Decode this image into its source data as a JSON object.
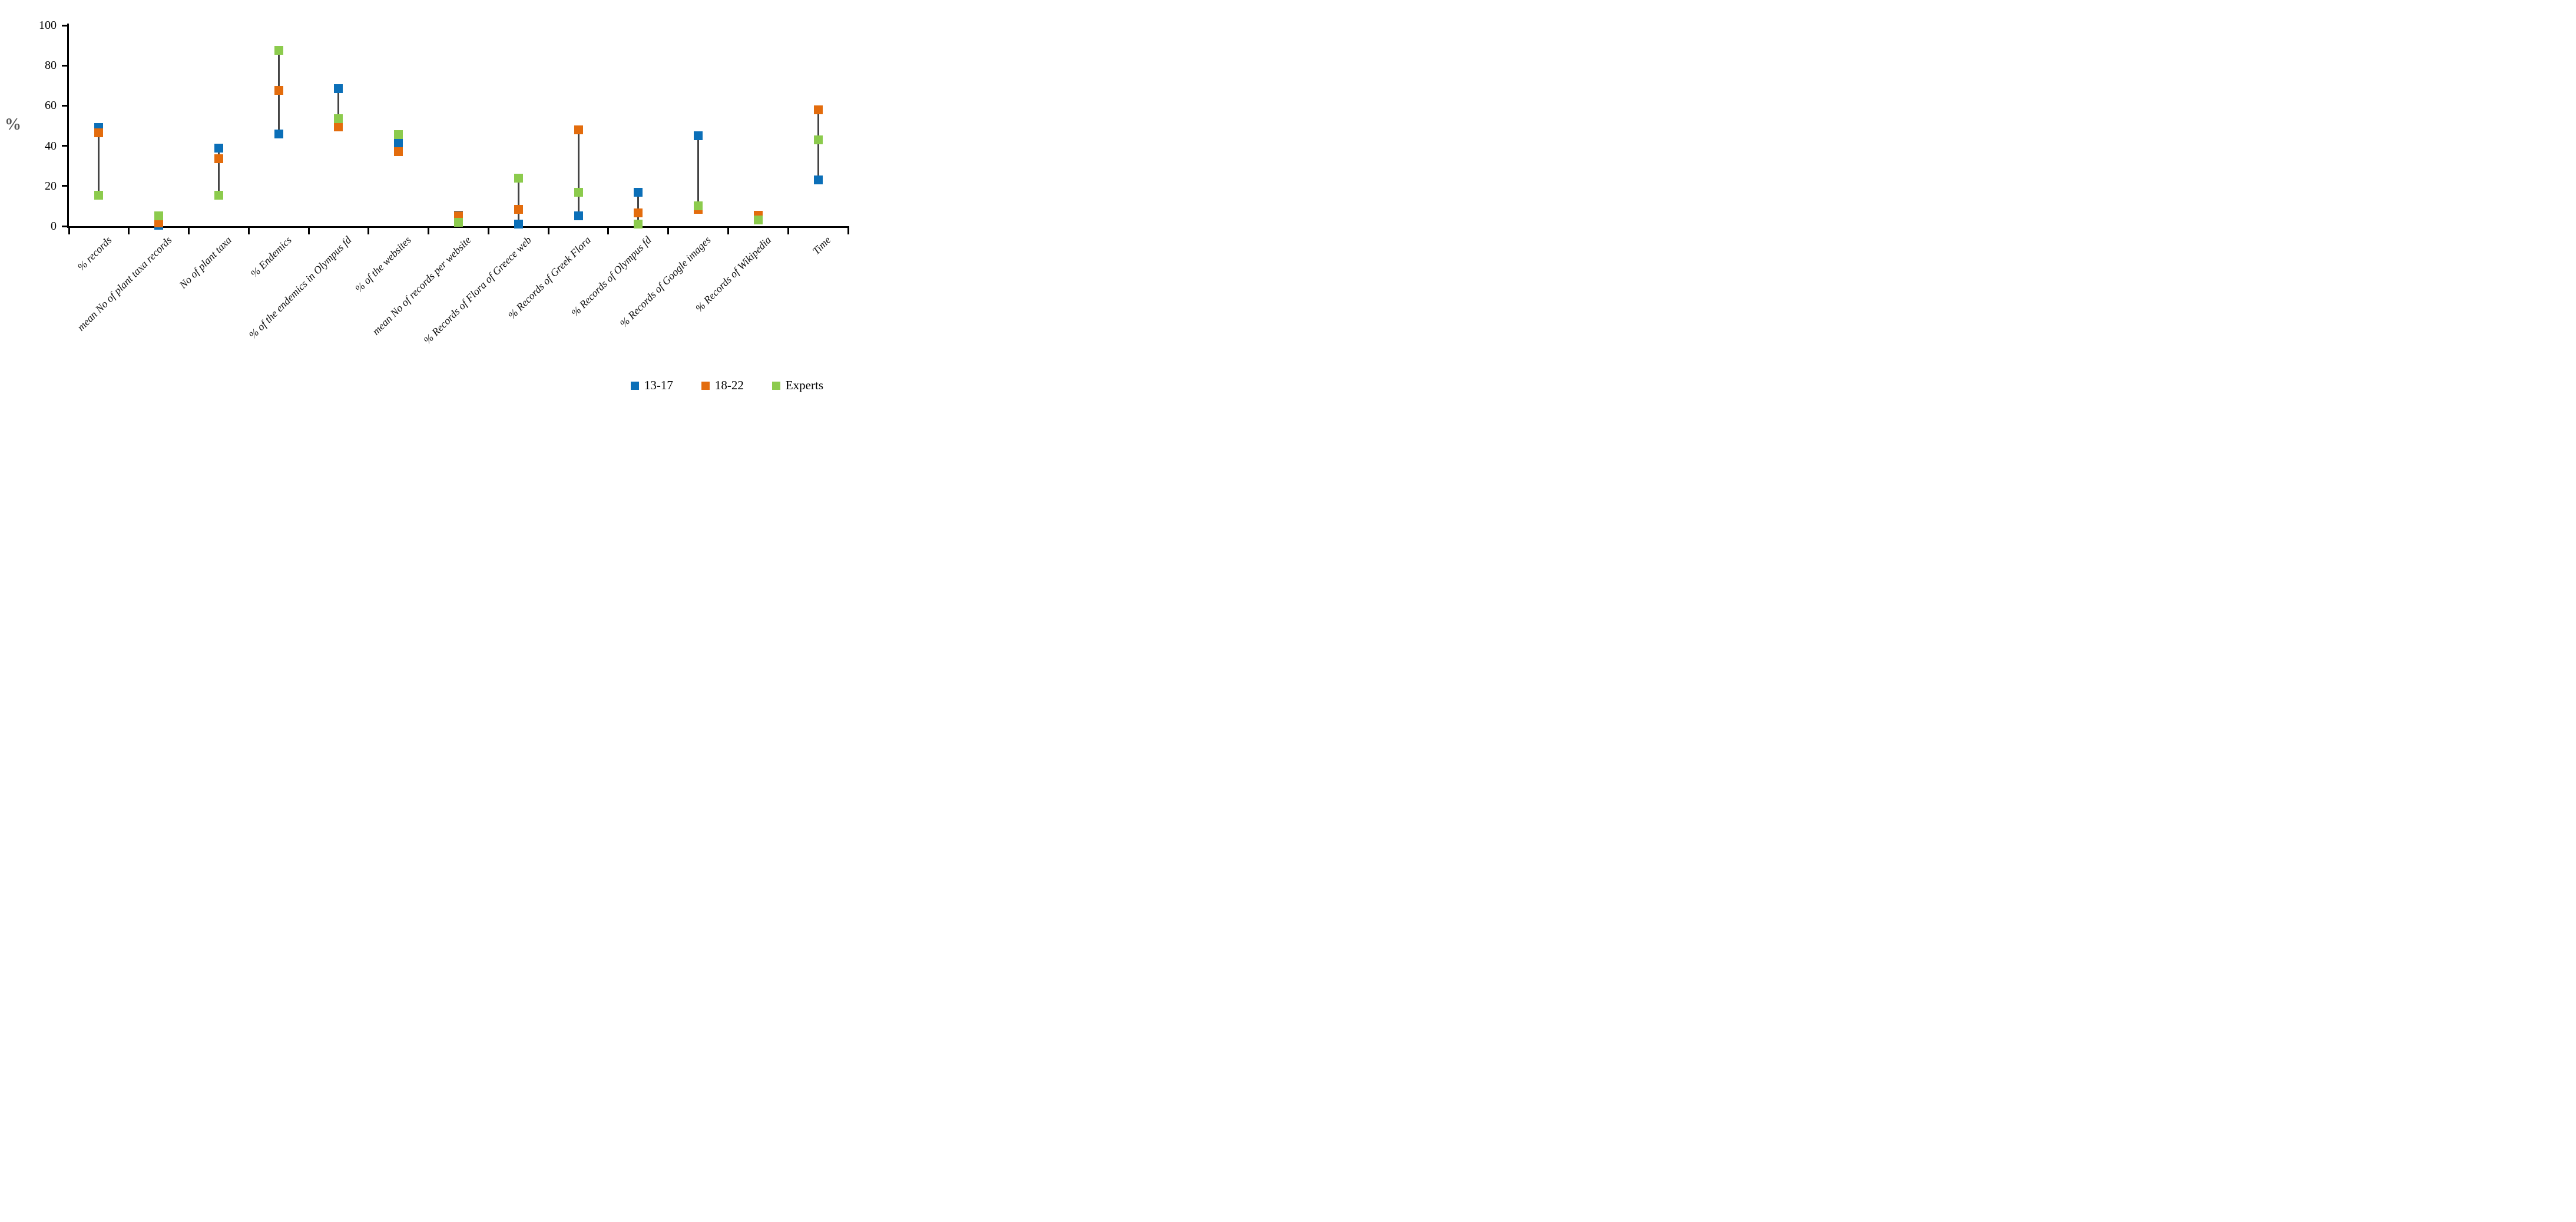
{
  "figure": {
    "background": "#ffffff",
    "y_axis": {
      "title": "%",
      "tick_values": [
        0,
        20,
        40,
        60,
        80,
        100
      ],
      "min": 0,
      "max": 100
    },
    "legend": {
      "position": "bottom-right",
      "items": [
        {
          "label": "13-17",
          "color": "#0B6FB8"
        },
        {
          "label": "18-22",
          "color": "#E36C0D"
        },
        {
          "label": "Experts",
          "color": "#8CCB4D"
        }
      ]
    }
  },
  "chart_data": {
    "type": "scatter",
    "subtype": "dumbbell-range-plot",
    "title": "",
    "xlabel": "",
    "ylabel": "%",
    "ylim": [
      0,
      100
    ],
    "grid": false,
    "legend_position": "bottom-right",
    "marker_shape": "square",
    "connector_color": "#444444",
    "categories": [
      "% records",
      "mean No of plant taxa records",
      "No of plant taxa",
      "% Endemics",
      "% of the endemics in Olympus fd",
      "% of the websites",
      "mean No of records per website",
      "% Records of Flora of Greece web",
      "% Records of Greek Flora",
      "% Records of Olympus fd",
      "% Records of Google images",
      "% Records of Wikipedia",
      "Time"
    ],
    "series": [
      {
        "name": "13-17",
        "color": "#0B6FB8",
        "values": [
          49,
          0.5,
          39,
          46,
          68.5,
          41.5,
          5.5,
          1,
          5,
          17,
          45,
          null,
          23
        ]
      },
      {
        "name": "18-22",
        "color": "#E36C0D",
        "values": [
          46.5,
          1.5,
          33.5,
          67.5,
          49.5,
          37,
          5,
          8.5,
          48,
          6.5,
          8.5,
          5.5,
          58
        ]
      },
      {
        "name": "Experts",
        "color": "#8CCB4D",
        "values": [
          15.5,
          5,
          15.5,
          87.5,
          53.5,
          45.5,
          2,
          24,
          17,
          1,
          10,
          3,
          43
        ]
      }
    ]
  }
}
